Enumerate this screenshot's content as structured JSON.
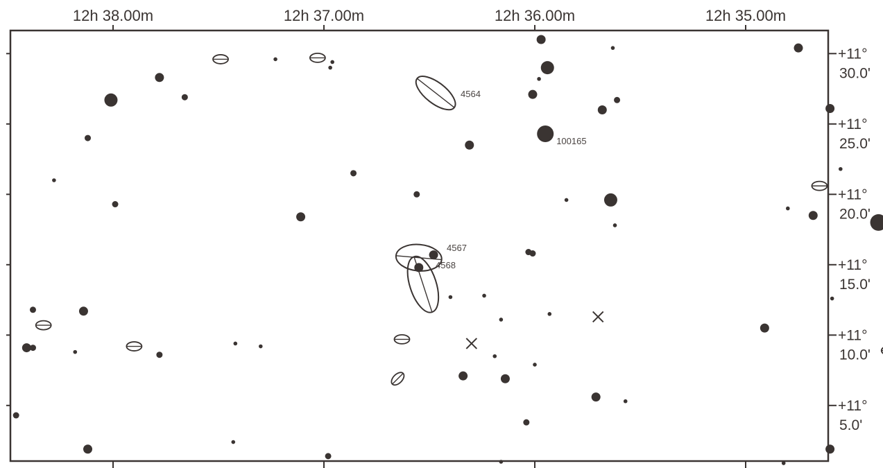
{
  "chart_data": {
    "type": "scatter",
    "title": "",
    "colors": {
      "ink": "#3a3432",
      "background": "#ffffff"
    },
    "x_axis": {
      "quantity": "right ascension",
      "direction": "decreasing to the right",
      "ticks": [
        {
          "ra_min": 38.0,
          "label": "12h 38.00m"
        },
        {
          "ra_min": 37.0,
          "label": "12h 37.00m"
        },
        {
          "ra_min": 36.0,
          "label": "12h 36.00m"
        },
        {
          "ra_min": 35.0,
          "label": "12h 35.00m"
        }
      ],
      "range_min": [
        38.47,
        34.63
      ]
    },
    "y_axis": {
      "quantity": "declination",
      "position": "right",
      "ticks": [
        {
          "dec_arcmin": 30,
          "line1": "+11°",
          "line2": "30.0'"
        },
        {
          "dec_arcmin": 25,
          "line1": "+11°",
          "line2": "25.0'"
        },
        {
          "dec_arcmin": 20,
          "line1": "+11°",
          "line2": "20.0'"
        },
        {
          "dec_arcmin": 15,
          "line1": "+11°",
          "line2": "15.0'"
        },
        {
          "dec_arcmin": 10,
          "line1": "+11°",
          "line2": "10.0'"
        },
        {
          "dec_arcmin": 5,
          "line1": "+11°",
          "line2": "5.0'"
        }
      ],
      "range_arcmin": [
        0.7,
        31.0
      ]
    },
    "stars": [
      {
        "ra": 38.01,
        "dec": 26.7,
        "mag": "bright"
      },
      {
        "ra": 37.78,
        "dec": 28.3,
        "mag": "medium"
      },
      {
        "ra": 37.66,
        "dec": 26.9,
        "mag": "small"
      },
      {
        "ra": 38.12,
        "dec": 24.0,
        "mag": "small"
      },
      {
        "ra": 38.28,
        "dec": 21.0,
        "mag": "tiny"
      },
      {
        "ra": 37.99,
        "dec": 19.3,
        "mag": "small"
      },
      {
        "ra": 37.11,
        "dec": 18.4,
        "mag": "medium"
      },
      {
        "ra": 36.86,
        "dec": 21.5,
        "mag": "small"
      },
      {
        "ra": 36.96,
        "dec": 29.4,
        "mag": "tiny"
      },
      {
        "ra": 37.23,
        "dec": 29.6,
        "mag": "tiny"
      },
      {
        "ra": 36.56,
        "dec": 20.0,
        "mag": "small"
      },
      {
        "ra": 36.31,
        "dec": 23.5,
        "mag": "medium"
      },
      {
        "ra": 36.97,
        "dec": 29.0,
        "mag": "tiny"
      },
      {
        "ra": 35.97,
        "dec": 31.0,
        "mag": "medium"
      },
      {
        "ra": 35.94,
        "dec": 29.0,
        "mag": "bright"
      },
      {
        "ra": 36.01,
        "dec": 27.1,
        "mag": "medium"
      },
      {
        "ra": 35.98,
        "dec": 28.2,
        "mag": "tiny"
      },
      {
        "ra": 35.63,
        "dec": 30.4,
        "mag": "tiny"
      },
      {
        "ra": 35.68,
        "dec": 26.0,
        "mag": "medium"
      },
      {
        "ra": 35.61,
        "dec": 26.7,
        "mag": "small"
      },
      {
        "ra": 35.95,
        "dec": 24.3,
        "mag": "large"
      },
      {
        "ra": 35.85,
        "dec": 19.6,
        "mag": "tiny"
      },
      {
        "ra": 35.64,
        "dec": 19.6,
        "mag": "bright"
      },
      {
        "ra": 35.62,
        "dec": 17.8,
        "mag": "tiny"
      },
      {
        "ra": 34.75,
        "dec": 30.4,
        "mag": "medium"
      },
      {
        "ra": 34.6,
        "dec": 26.1,
        "mag": "medium"
      },
      {
        "ra": 34.55,
        "dec": 21.8,
        "mag": "tiny"
      },
      {
        "ra": 34.8,
        "dec": 19.0,
        "mag": "tiny"
      },
      {
        "ra": 34.68,
        "dec": 18.5,
        "mag": "medium"
      },
      {
        "ra": 34.37,
        "dec": 18.0,
        "mag": "large"
      },
      {
        "ra": 36.48,
        "dec": 15.7,
        "mag": "medium"
      },
      {
        "ra": 36.55,
        "dec": 14.8,
        "mag": "medium"
      },
      {
        "ra": 36.03,
        "dec": 15.9,
        "mag": "small"
      },
      {
        "ra": 36.01,
        "dec": 15.8,
        "mag": "small"
      },
      {
        "ra": 36.4,
        "dec": 12.7,
        "mag": "tiny"
      },
      {
        "ra": 36.24,
        "dec": 12.8,
        "mag": "tiny"
      },
      {
        "ra": 36.16,
        "dec": 11.1,
        "mag": "tiny"
      },
      {
        "ra": 35.93,
        "dec": 11.5,
        "mag": "tiny"
      },
      {
        "ra": 34.91,
        "dec": 10.5,
        "mag": "medium"
      },
      {
        "ra": 34.59,
        "dec": 12.6,
        "mag": "tiny"
      },
      {
        "ra": 38.38,
        "dec": 11.8,
        "mag": "small"
      },
      {
        "ra": 38.14,
        "dec": 11.7,
        "mag": "medium"
      },
      {
        "ra": 38.41,
        "dec": 9.1,
        "mag": "medium"
      },
      {
        "ra": 38.38,
        "dec": 9.1,
        "mag": "small"
      },
      {
        "ra": 38.18,
        "dec": 8.8,
        "mag": "tiny"
      },
      {
        "ra": 37.78,
        "dec": 8.6,
        "mag": "small"
      },
      {
        "ra": 37.42,
        "dec": 9.4,
        "mag": "tiny"
      },
      {
        "ra": 37.3,
        "dec": 9.2,
        "mag": "tiny"
      },
      {
        "ra": 36.34,
        "dec": 7.1,
        "mag": "medium"
      },
      {
        "ra": 36.14,
        "dec": 6.9,
        "mag": "medium"
      },
      {
        "ra": 36.19,
        "dec": 8.5,
        "mag": "tiny"
      },
      {
        "ra": 36.0,
        "dec": 7.9,
        "mag": "tiny"
      },
      {
        "ra": 35.71,
        "dec": 5.6,
        "mag": "medium"
      },
      {
        "ra": 35.57,
        "dec": 5.3,
        "mag": "tiny"
      },
      {
        "ra": 36.04,
        "dec": 3.8,
        "mag": "small"
      },
      {
        "ra": 38.46,
        "dec": 4.3,
        "mag": "small"
      },
      {
        "ra": 38.12,
        "dec": 1.9,
        "mag": "medium"
      },
      {
        "ra": 37.43,
        "dec": 2.4,
        "mag": "tiny"
      },
      {
        "ra": 36.98,
        "dec": 1.4,
        "mag": "small"
      },
      {
        "ra": 36.16,
        "dec": 1.0,
        "mag": "tiny"
      },
      {
        "ra": 34.82,
        "dec": 0.9,
        "mag": "tiny"
      },
      {
        "ra": 34.6,
        "dec": 1.9,
        "mag": "medium"
      }
    ],
    "small_galaxies": [
      {
        "ra": 37.49,
        "dec": 29.6,
        "angle": 0
      },
      {
        "ra": 37.03,
        "dec": 29.7,
        "angle": 0
      },
      {
        "ra": 34.65,
        "dec": 20.6,
        "angle": 0
      },
      {
        "ra": 38.33,
        "dec": 10.7,
        "angle": 0
      },
      {
        "ra": 37.9,
        "dec": 9.2,
        "angle": 0
      },
      {
        "ra": 36.63,
        "dec": 9.7,
        "angle": 0
      },
      {
        "ra": 36.65,
        "dec": 6.9,
        "angle": -45
      },
      {
        "ra": 34.32,
        "dec": 8.9,
        "angle": 0
      }
    ],
    "galaxies": [
      {
        "name": "4564",
        "label": "4564",
        "ra": 36.47,
        "dec": 27.2,
        "rx": 34,
        "ry": 15,
        "angle": 38
      },
      {
        "name": "4567",
        "label": "4567",
        "ra": 36.55,
        "dec": 15.5,
        "rx": 33,
        "ry": 19,
        "angle": 5
      },
      {
        "name": "4568",
        "label": "4568",
        "ra": 36.53,
        "dec": 13.6,
        "rx": 42,
        "ry": 19,
        "angle": 72
      }
    ],
    "markers": [
      {
        "symbol": "x",
        "ra": 36.3,
        "dec": 9.4
      },
      {
        "symbol": "x",
        "ra": 35.7,
        "dec": 11.3
      }
    ],
    "labels": [
      {
        "text": "100165",
        "ra": 35.95,
        "dec": 24.3,
        "anchor": "right"
      }
    ]
  }
}
